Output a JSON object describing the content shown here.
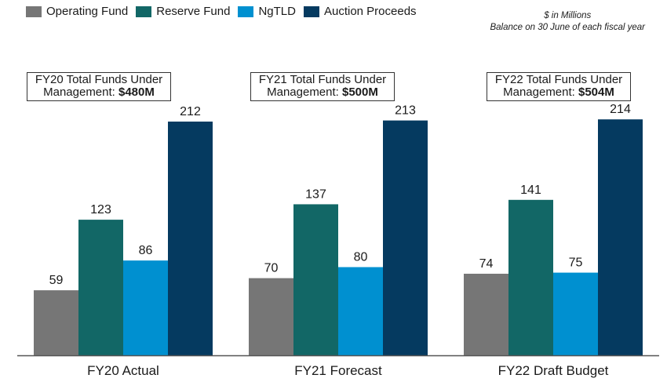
{
  "chart_data": {
    "type": "bar",
    "title": "",
    "xlabel": "",
    "ylabel": "",
    "ylim": [
      0,
      220
    ],
    "grid": false,
    "legend_position": "top-left",
    "categories": [
      "FY20 Actual",
      "FY21 Forecast",
      "FY22 Draft Budget"
    ],
    "series": [
      {
        "name": "Operating Fund",
        "color": "#767676",
        "values": [
          59,
          70,
          74
        ]
      },
      {
        "name": "Reserve Fund",
        "color": "#126766",
        "values": [
          123,
          137,
          141
        ]
      },
      {
        "name": "NgTLD",
        "color": "#0090d0",
        "values": [
          86,
          80,
          75
        ]
      },
      {
        "name": "Auction Proceeds",
        "color": "#053a60",
        "values": [
          212,
          213,
          214
        ]
      }
    ],
    "annotations": {
      "units": "$ in Millions",
      "subtitle": "Balance on 30 June of each fiscal year",
      "callouts": [
        {
          "line1": "FY20 Total Funds Under",
          "line2_prefix": "Management: ",
          "line2_value": "$480M"
        },
        {
          "line1": "FY21 Total Funds Under",
          "line2_prefix": "Management: ",
          "line2_value": "$500M"
        },
        {
          "line1": "FY22 Total Funds Under",
          "line2_prefix": "Management: ",
          "line2_value": "$504M"
        }
      ]
    }
  }
}
